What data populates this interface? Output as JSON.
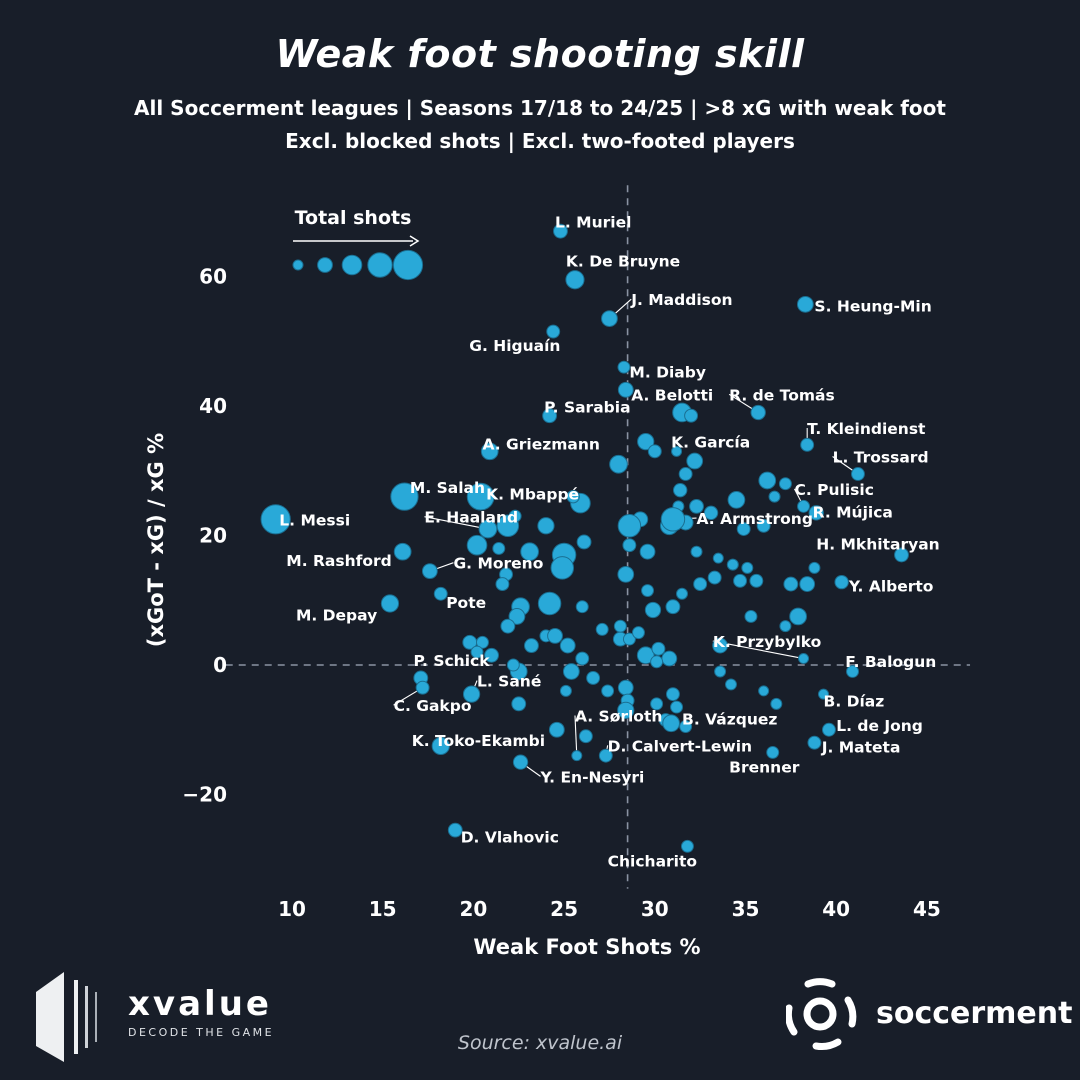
{
  "title": "Weak foot shooting skill",
  "subtitle_1": "All Soccerment leagues | Seasons 17/18 to 24/25 | >8 xG with weak foot",
  "subtitle_2": "Excl. blocked shots | Excl. two-footed players",
  "source": "Source: xvalue.ai",
  "logos": {
    "xvalue": {
      "name": "xvalue",
      "tagline": "DECODE THE GAME"
    },
    "soccerment": {
      "name": "soccerment"
    }
  },
  "colors": {
    "background": "#181e29",
    "point": "#29a9d8",
    "point_edge": "#1a6f92",
    "text": "#ffffff",
    "refline": "#8a93a3"
  },
  "chart_data": {
    "type": "scatter",
    "xlabel": "Weak Foot Shots %",
    "ylabel": "(xGoT - xG) / xG %",
    "xlim": [
      8,
      46
    ],
    "ylim": [
      -33,
      71
    ],
    "xticks": [
      10,
      15,
      20,
      25,
      30,
      35,
      40,
      45
    ],
    "yticks": [
      -20,
      0,
      20,
      40,
      60
    ],
    "reference_lines": {
      "x": 28.5,
      "y": 0
    },
    "size_legend": {
      "label": "Total shots",
      "sizes": [
        1,
        2,
        3,
        4,
        5
      ]
    },
    "labeled_points": [
      {
        "name": "L. Muriel",
        "x": 24.8,
        "y": 67,
        "s": 1.8,
        "lx": 24.5,
        "ly": 68.5,
        "anchor": "start"
      },
      {
        "name": "K. De Bruyne",
        "x": 25.6,
        "y": 59.5,
        "s": 2.7,
        "lx": 25.1,
        "ly": 62.5,
        "anchor": "start"
      },
      {
        "name": "J. Maddison",
        "x": 27.5,
        "y": 53.5,
        "s": 2.2,
        "lx": 28.7,
        "ly": 56.5,
        "anchor": "start",
        "leader": true
      },
      {
        "name": "S. Heung-Min",
        "x": 38.3,
        "y": 55.7,
        "s": 2.2,
        "lx": 38.8,
        "ly": 55.5,
        "anchor": "start"
      },
      {
        "name": "G. Higuaín",
        "x": 24.4,
        "y": 51.5,
        "s": 1.6,
        "lx": 24.8,
        "ly": 49.4,
        "anchor": "end"
      },
      {
        "name": "M. Diaby",
        "x": 28.3,
        "y": 46,
        "s": 1.4,
        "lx": 28.6,
        "ly": 45.3,
        "anchor": "start"
      },
      {
        "name": "A. Belotti",
        "x": 28.4,
        "y": 42.5,
        "s": 2,
        "lx": 28.7,
        "ly": 41.8,
        "anchor": "start"
      },
      {
        "name": "R. de Tomás",
        "x": 35.7,
        "y": 39,
        "s": 1.9,
        "lx": 34.1,
        "ly": 41.8,
        "anchor": "start",
        "leader": true
      },
      {
        "name": "P. Sarabia",
        "x": 24.2,
        "y": 38.5,
        "s": 1.8,
        "lx": 23.9,
        "ly": 39.9,
        "anchor": "start"
      },
      {
        "name": "T. Kleindienst",
        "x": 38.4,
        "y": 34,
        "s": 1.6,
        "lx": 38.4,
        "ly": 36.6,
        "anchor": "start",
        "leader": true
      },
      {
        "name": "K. García",
        "x": 31.2,
        "y": 33,
        "s": 1,
        "lx": 30.9,
        "ly": 34.5,
        "anchor": "start"
      },
      {
        "name": "A. Griezmann",
        "x": 20.9,
        "y": 33,
        "s": 2.4,
        "lx": 20.5,
        "ly": 34.2,
        "anchor": "start"
      },
      {
        "name": "L. Trossard",
        "x": 41.2,
        "y": 29.5,
        "s": 1.6,
        "lx": 39.8,
        "ly": 32.2,
        "anchor": "start",
        "leader": true
      },
      {
        "name": "C. Pulisic",
        "x": 38.2,
        "y": 24.5,
        "s": 1.4,
        "lx": 37.7,
        "ly": 27.2,
        "anchor": "start",
        "leader": true
      },
      {
        "name": "M. Salah",
        "x": 16.2,
        "y": 26,
        "s": 4.6,
        "lx": 16.5,
        "ly": 27.5,
        "anchor": "start"
      },
      {
        "name": "K. Mbappé",
        "x": 20.4,
        "y": 26,
        "s": 4.5,
        "lx": 20.7,
        "ly": 26.5,
        "anchor": "start",
        "leader": true
      },
      {
        "name": "R. Mújica",
        "x": 38.9,
        "y": 23.5,
        "s": 1.9,
        "lx": 38.7,
        "ly": 23.7,
        "anchor": "start"
      },
      {
        "name": "L. Messi",
        "x": 9.1,
        "y": 22.5,
        "s": 5,
        "lx": 9.3,
        "ly": 22.5,
        "anchor": "start"
      },
      {
        "name": "E. Haaland",
        "x": 20.8,
        "y": 21,
        "s": 2.6,
        "lx": 17.3,
        "ly": 22.9,
        "anchor": "start",
        "leader": true
      },
      {
        "name": "A. Armstrong",
        "x": 31,
        "y": 22.5,
        "s": 3.8,
        "lx": 32.3,
        "ly": 22.7,
        "anchor": "start",
        "leader": true
      },
      {
        "name": "H. Mkhitaryan",
        "x": 43.6,
        "y": 17,
        "s": 1.8,
        "lx": 38.9,
        "ly": 18.8,
        "anchor": "start"
      },
      {
        "name": "M. Rashford",
        "x": 16.1,
        "y": 17.5,
        "s": 2.4,
        "lx": 15.5,
        "ly": 16.2,
        "anchor": "end"
      },
      {
        "name": "G. Moreno",
        "x": 17.6,
        "y": 14.5,
        "s": 2,
        "lx": 18.9,
        "ly": 15.8,
        "anchor": "start",
        "leader": true
      },
      {
        "name": "Y. Alberto",
        "x": 40.3,
        "y": 12.8,
        "s": 1.7,
        "lx": 40.7,
        "ly": 12.3,
        "anchor": "start"
      },
      {
        "name": "Pote",
        "x": 18.2,
        "y": 11,
        "s": 1.6,
        "lx": 18.5,
        "ly": 9.7,
        "anchor": "start"
      },
      {
        "name": "M. Depay",
        "x": 15.4,
        "y": 9.5,
        "s": 2.5,
        "lx": 14.7,
        "ly": 7.8,
        "anchor": "end"
      },
      {
        "name": "K. Przybylko",
        "x": 38.2,
        "y": 1,
        "s": 1,
        "lx": 33.2,
        "ly": 3.7,
        "anchor": "start",
        "leader": true
      },
      {
        "name": "F. Balogun",
        "x": 40.9,
        "y": -1,
        "s": 1.4,
        "lx": 40.5,
        "ly": 0.6,
        "anchor": "start"
      },
      {
        "name": "P. Schick",
        "x": 17.1,
        "y": -2,
        "s": 1.8,
        "lx": 16.7,
        "ly": 0.8,
        "anchor": "start"
      },
      {
        "name": "L. Sané",
        "x": 19.9,
        "y": -4.5,
        "s": 2.3,
        "lx": 20.2,
        "ly": -2.4,
        "anchor": "start",
        "leader": true
      },
      {
        "name": "C. Gakpo",
        "x": 17.2,
        "y": -3.5,
        "s": 1.6,
        "lx": 15.6,
        "ly": -6.2,
        "anchor": "start",
        "leader": true
      },
      {
        "name": "B. Díaz",
        "x": 39.3,
        "y": -4.5,
        "s": 1,
        "lx": 39.3,
        "ly": -5.5,
        "anchor": "start"
      },
      {
        "name": "A. Sørloth",
        "x": 25.7,
        "y": -14,
        "s": 1,
        "lx": 25.6,
        "ly": -7.8,
        "anchor": "start",
        "leader": true
      },
      {
        "name": "B. Vázquez",
        "x": 30.9,
        "y": -9,
        "s": 2.4,
        "lx": 31.5,
        "ly": -8.3,
        "anchor": "start"
      },
      {
        "name": "L. de Jong",
        "x": 39.6,
        "y": -10,
        "s": 1.6,
        "lx": 40,
        "ly": -9.3,
        "anchor": "start"
      },
      {
        "name": "K. Toko-Ekambi",
        "x": 18.2,
        "y": -12.5,
        "s": 2.5,
        "lx": 16.6,
        "ly": -11.6,
        "anchor": "start"
      },
      {
        "name": "D. Calvert-Lewin",
        "x": 27.3,
        "y": -14,
        "s": 1.6,
        "lx": 27.4,
        "ly": -12.4,
        "anchor": "start",
        "leader": true
      },
      {
        "name": "J. Mateta",
        "x": 38.8,
        "y": -12,
        "s": 1.6,
        "lx": 39.2,
        "ly": -12.6,
        "anchor": "start"
      },
      {
        "name": "Brenner",
        "x": 36.5,
        "y": -13.5,
        "s": 1.4,
        "lx": 34.1,
        "ly": -15.7,
        "anchor": "start"
      },
      {
        "name": "Y. En-Nesyri",
        "x": 22.6,
        "y": -15,
        "s": 1.9,
        "lx": 23.7,
        "ly": -17.2,
        "anchor": "start",
        "leader": true
      },
      {
        "name": "D. Vlahovic",
        "x": 19,
        "y": -25.5,
        "s": 1.8,
        "lx": 19.3,
        "ly": -26.5,
        "anchor": "start"
      },
      {
        "name": "Chicharito",
        "x": 31.8,
        "y": -28,
        "s": 1.4,
        "lx": 27.4,
        "ly": -30.2,
        "anchor": "start"
      }
    ],
    "unlabeled_points": [
      {
        "x": 31.5,
        "y": 39,
        "s": 2.8
      },
      {
        "x": 32,
        "y": 38.5,
        "s": 1.6
      },
      {
        "x": 29.5,
        "y": 34.5,
        "s": 2.3
      },
      {
        "x": 30,
        "y": 33,
        "s": 1.6
      },
      {
        "x": 28,
        "y": 31,
        "s": 2.6
      },
      {
        "x": 32.2,
        "y": 31.5,
        "s": 2.2
      },
      {
        "x": 31.7,
        "y": 29.5,
        "s": 1.6
      },
      {
        "x": 36.2,
        "y": 28.5,
        "s": 2.4
      },
      {
        "x": 37.2,
        "y": 28,
        "s": 1.4
      },
      {
        "x": 36.6,
        "y": 26,
        "s": 1.2
      },
      {
        "x": 31.4,
        "y": 27,
        "s": 1.7
      },
      {
        "x": 34.5,
        "y": 25.5,
        "s": 2.4
      },
      {
        "x": 31.3,
        "y": 24.5,
        "s": 1.2
      },
      {
        "x": 32.3,
        "y": 24.5,
        "s": 1.8
      },
      {
        "x": 25.9,
        "y": 25,
        "s": 3
      },
      {
        "x": 25.5,
        "y": 26,
        "s": 1.5
      },
      {
        "x": 29.2,
        "y": 22.5,
        "s": 2
      },
      {
        "x": 30.8,
        "y": 21.5,
        "s": 2.6
      },
      {
        "x": 31.7,
        "y": 22,
        "s": 2
      },
      {
        "x": 33.1,
        "y": 23.5,
        "s": 1.7
      },
      {
        "x": 34.9,
        "y": 21,
        "s": 1.6
      },
      {
        "x": 36,
        "y": 21.5,
        "s": 1.6
      },
      {
        "x": 28.6,
        "y": 21.5,
        "s": 3.6
      },
      {
        "x": 21.9,
        "y": 21.5,
        "s": 3.4
      },
      {
        "x": 24,
        "y": 21.5,
        "s": 2.3
      },
      {
        "x": 22.3,
        "y": 23,
        "s": 1.4
      },
      {
        "x": 20.2,
        "y": 18.5,
        "s": 3
      },
      {
        "x": 21.4,
        "y": 18,
        "s": 1.4
      },
      {
        "x": 23.1,
        "y": 17.5,
        "s": 2.6
      },
      {
        "x": 25,
        "y": 17,
        "s": 3.8
      },
      {
        "x": 26.1,
        "y": 19,
        "s": 1.8
      },
      {
        "x": 28.6,
        "y": 18.5,
        "s": 1.6
      },
      {
        "x": 29.6,
        "y": 17.5,
        "s": 2
      },
      {
        "x": 32.3,
        "y": 17.5,
        "s": 1.2
      },
      {
        "x": 33.5,
        "y": 16.5,
        "s": 1
      },
      {
        "x": 34.3,
        "y": 15.5,
        "s": 1.2
      },
      {
        "x": 35.1,
        "y": 15,
        "s": 1.2
      },
      {
        "x": 24.9,
        "y": 15,
        "s": 3.6
      },
      {
        "x": 28.4,
        "y": 14,
        "s": 2.2
      },
      {
        "x": 21.8,
        "y": 14,
        "s": 1.6
      },
      {
        "x": 21.6,
        "y": 12.5,
        "s": 1.6
      },
      {
        "x": 32.5,
        "y": 12.5,
        "s": 1.6
      },
      {
        "x": 33.3,
        "y": 13.5,
        "s": 1.6
      },
      {
        "x": 34.7,
        "y": 13,
        "s": 1.6
      },
      {
        "x": 35.6,
        "y": 13,
        "s": 1.6
      },
      {
        "x": 37.5,
        "y": 12.5,
        "s": 1.8
      },
      {
        "x": 38.4,
        "y": 12.5,
        "s": 2
      },
      {
        "x": 38.8,
        "y": 15,
        "s": 1.2
      },
      {
        "x": 29.6,
        "y": 11.5,
        "s": 1.4
      },
      {
        "x": 31.5,
        "y": 11,
        "s": 1.2
      },
      {
        "x": 24.2,
        "y": 9.5,
        "s": 3.6
      },
      {
        "x": 22.6,
        "y": 9,
        "s": 2.6
      },
      {
        "x": 22.4,
        "y": 7.5,
        "s": 2.2
      },
      {
        "x": 21.9,
        "y": 6,
        "s": 1.8
      },
      {
        "x": 23.2,
        "y": 3,
        "s": 1.8
      },
      {
        "x": 24,
        "y": 4.5,
        "s": 1.4
      },
      {
        "x": 24.5,
        "y": 4.5,
        "s": 2
      },
      {
        "x": 25.2,
        "y": 3,
        "s": 2
      },
      {
        "x": 26,
        "y": 1,
        "s": 1.6
      },
      {
        "x": 25.4,
        "y": -1,
        "s": 2.2
      },
      {
        "x": 28.1,
        "y": 4,
        "s": 1.8
      },
      {
        "x": 28.6,
        "y": 4,
        "s": 1.4
      },
      {
        "x": 29.1,
        "y": 5,
        "s": 1.4
      },
      {
        "x": 28.1,
        "y": 6,
        "s": 1.4
      },
      {
        "x": 27.1,
        "y": 5.5,
        "s": 1.4
      },
      {
        "x": 29.9,
        "y": 8.5,
        "s": 2.1
      },
      {
        "x": 31,
        "y": 9,
        "s": 1.8
      },
      {
        "x": 26,
        "y": 9,
        "s": 1.4
      },
      {
        "x": 29.5,
        "y": 1.5,
        "s": 2.4
      },
      {
        "x": 30.2,
        "y": 2.5,
        "s": 1.6
      },
      {
        "x": 30.8,
        "y": 1,
        "s": 2
      },
      {
        "x": 30.1,
        "y": 0.5,
        "s": 1.4
      },
      {
        "x": 33.6,
        "y": 3,
        "s": 2
      },
      {
        "x": 35.3,
        "y": 7.5,
        "s": 1.4
      },
      {
        "x": 37.2,
        "y": 6,
        "s": 1.2
      },
      {
        "x": 37.9,
        "y": 7.5,
        "s": 2.4
      },
      {
        "x": 19.8,
        "y": 3.5,
        "s": 1.8
      },
      {
        "x": 20.5,
        "y": 3.5,
        "s": 1.4
      },
      {
        "x": 20.2,
        "y": 2,
        "s": 1.4
      },
      {
        "x": 21,
        "y": 1.5,
        "s": 1.8
      },
      {
        "x": 22.5,
        "y": -1,
        "s": 2.4
      },
      {
        "x": 22.2,
        "y": 0,
        "s": 1.4
      },
      {
        "x": 26.6,
        "y": -2,
        "s": 1.6
      },
      {
        "x": 27.4,
        "y": -4,
        "s": 1.4
      },
      {
        "x": 28.4,
        "y": -3.5,
        "s": 2
      },
      {
        "x": 28.5,
        "y": -5.5,
        "s": 1.6
      },
      {
        "x": 28.4,
        "y": -7,
        "s": 2.3
      },
      {
        "x": 25.1,
        "y": -4,
        "s": 1.2
      },
      {
        "x": 22.5,
        "y": -6,
        "s": 1.8
      },
      {
        "x": 31,
        "y": -4.5,
        "s": 1.6
      },
      {
        "x": 30.1,
        "y": -6,
        "s": 1.4
      },
      {
        "x": 31.2,
        "y": -6.5,
        "s": 1.4
      },
      {
        "x": 30.6,
        "y": -8.5,
        "s": 1.6
      },
      {
        "x": 31.7,
        "y": -9.5,
        "s": 1.4
      },
      {
        "x": 33.6,
        "y": -1,
        "s": 1.2
      },
      {
        "x": 34.2,
        "y": -3,
        "s": 1.2
      },
      {
        "x": 36,
        "y": -4,
        "s": 1
      },
      {
        "x": 36.7,
        "y": -6,
        "s": 1.2
      },
      {
        "x": 24.6,
        "y": -10,
        "s": 2
      },
      {
        "x": 26.2,
        "y": -11,
        "s": 1.6
      }
    ]
  }
}
